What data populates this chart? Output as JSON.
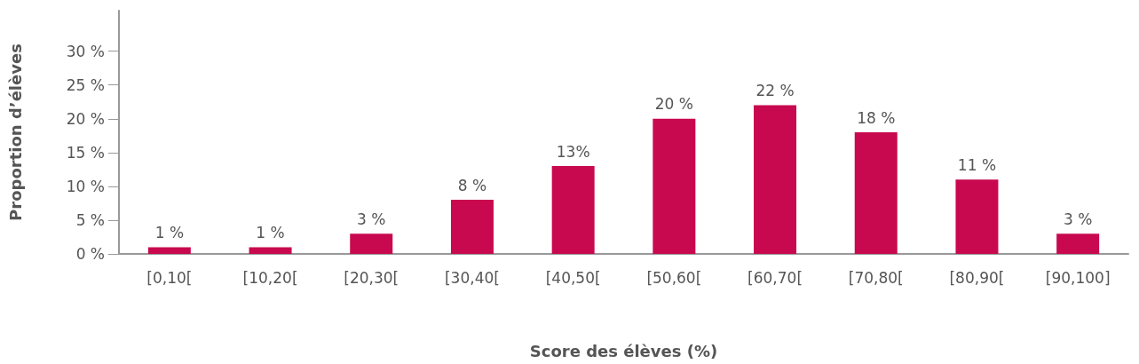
{
  "chart_data": {
    "type": "bar",
    "xlabel": "Score des élèves (%)",
    "ylabel": "Proportion d’élèves",
    "categories": [
      "[0,10[",
      "[10,20[",
      "[20,30[",
      "[30,40[",
      "[40,50[",
      "[50,60[",
      "[60,70[",
      "[70,80[",
      "[80,90[",
      "[90,100]"
    ],
    "values": [
      1,
      1,
      3,
      8,
      13,
      20,
      22,
      18,
      11,
      3
    ],
    "value_labels": [
      "1 %",
      "1 %",
      "3 %",
      "8 %",
      "13%",
      "20 %",
      "22 %",
      "18 %",
      "11 %",
      "3 %"
    ],
    "color": "#c8094f",
    "ylim": [
      0,
      36
    ],
    "yticks": [
      {
        "value": 0,
        "label": "0 %"
      },
      {
        "value": 5,
        "label": "5 %"
      },
      {
        "value": 10,
        "label": "10 %"
      },
      {
        "value": 15,
        "label": "15 %"
      },
      {
        "value": 20,
        "label": "20 %"
      },
      {
        "value": 25,
        "label": "25 %"
      },
      {
        "value": 30,
        "label": "30 %"
      }
    ],
    "grid": false
  }
}
